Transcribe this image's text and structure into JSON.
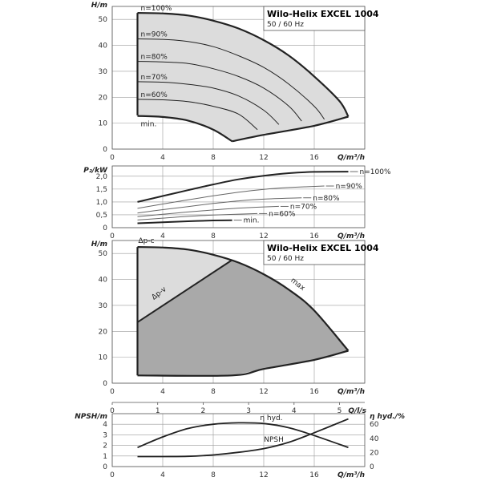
{
  "chart_data": [
    {
      "type": "line",
      "title": "Wilo-Helix EXCEL 1004",
      "subtitle": "50 / 60 Hz",
      "xlabel": "Q/m³/h",
      "ylabel": "H/m",
      "xlim": [
        0,
        20
      ],
      "ylim": [
        0,
        55
      ],
      "x_ticks": [
        "0",
        "4",
        "8",
        "12",
        "16"
      ],
      "y_ticks": [
        "0",
        "10",
        "20",
        "30",
        "40",
        "50"
      ],
      "grid": true,
      "fill_color": "#dcdcdc",
      "series": [
        {
          "name": "n=100%",
          "x": [
            2,
            4,
            6,
            8,
            10,
            12,
            14,
            16,
            18,
            18.7
          ],
          "y": [
            52.5,
            52.3,
            51.5,
            49.5,
            46.5,
            42,
            36,
            28,
            18.5,
            12.5
          ]
        },
        {
          "name": "n=90%",
          "x": [
            2,
            4,
            6,
            8,
            10,
            12,
            14,
            16,
            16.8
          ],
          "y": [
            42.5,
            42.3,
            41.5,
            39.5,
            36,
            31.5,
            25,
            16.5,
            11.5
          ]
        },
        {
          "name": "n=80%",
          "x": [
            2,
            4,
            6,
            8,
            10,
            12,
            14,
            15
          ],
          "y": [
            33.8,
            33.6,
            33,
            31,
            28,
            23.5,
            16.5,
            10.8
          ]
        },
        {
          "name": "n=70%",
          "x": [
            2,
            4,
            6,
            8,
            10,
            12,
            13.2
          ],
          "y": [
            26,
            25.8,
            25,
            23.5,
            20.5,
            15,
            9.5
          ]
        },
        {
          "name": "n=60%",
          "x": [
            2,
            4,
            6,
            8,
            10,
            11.5
          ],
          "y": [
            19.2,
            19,
            18.3,
            16.5,
            13.5,
            7.5
          ]
        },
        {
          "name": "min.",
          "x": [
            2,
            4,
            6,
            8,
            9.5
          ],
          "y": [
            12.8,
            12.4,
            11,
            7.5,
            3
          ]
        }
      ],
      "boundary": {
        "x": [
          2,
          2.2,
          4,
          6,
          8,
          9.5,
          12,
          16,
          18.7
        ],
        "y": [
          13,
          52.5,
          52.3,
          51.5,
          49.5,
          3,
          5.5,
          9,
          12.5
        ]
      }
    },
    {
      "type": "line",
      "xlabel": "Q/m³/h",
      "ylabel": "P₂/kW",
      "xlim": [
        0,
        20
      ],
      "ylim": [
        0,
        2.4
      ],
      "x_ticks": [
        "0",
        "4",
        "8",
        "12",
        "16"
      ],
      "y_ticks": [
        "0",
        "0,5",
        "1,0",
        "1,5",
        "2,0"
      ],
      "grid": true,
      "series": [
        {
          "name": "n=100%",
          "x": [
            2,
            4,
            6,
            8,
            10,
            12,
            14,
            16,
            18.7
          ],
          "y": [
            1.0,
            1.23,
            1.46,
            1.68,
            1.88,
            2.02,
            2.12,
            2.17,
            2.18
          ]
        },
        {
          "name": "n=90%",
          "x": [
            2,
            4,
            6,
            8,
            10,
            12,
            14,
            16.8
          ],
          "y": [
            0.75,
            0.92,
            1.08,
            1.24,
            1.38,
            1.49,
            1.56,
            1.62
          ]
        },
        {
          "name": "n=80%",
          "x": [
            2,
            4,
            6,
            8,
            10,
            12,
            15
          ],
          "y": [
            0.57,
            0.7,
            0.82,
            0.94,
            1.04,
            1.11,
            1.16
          ]
        },
        {
          "name": "n=70%",
          "x": [
            2,
            4,
            6,
            8,
            10,
            13.2
          ],
          "y": [
            0.43,
            0.52,
            0.61,
            0.69,
            0.76,
            0.83
          ]
        },
        {
          "name": "n=60%",
          "x": [
            2,
            4,
            6,
            8,
            11.5
          ],
          "y": [
            0.3,
            0.37,
            0.44,
            0.49,
            0.55
          ]
        },
        {
          "name": "min.",
          "x": [
            2,
            4,
            6,
            8,
            9.5
          ],
          "y": [
            0.17,
            0.21,
            0.25,
            0.28,
            0.29
          ]
        }
      ]
    },
    {
      "type": "area",
      "title": "Wilo-Helix EXCEL 1004",
      "subtitle": "50 / 60 Hz",
      "xlabel": "Q/m³/h",
      "ylabel": "H/m",
      "xlim": [
        0,
        20
      ],
      "ylim": [
        0,
        55
      ],
      "x_ticks": [
        "0",
        "4",
        "8",
        "12",
        "16"
      ],
      "y_ticks": [
        "0",
        "10",
        "20",
        "30",
        "40",
        "50"
      ],
      "grid": true,
      "x2label": "Q/l/s",
      "x2_ticks": [
        "0",
        "1",
        "2",
        "3",
        "4",
        "5"
      ],
      "x2_unit_factor": 3.6,
      "light_color": "#dcdcdc",
      "dark_color": "#a9a9a9",
      "series": [
        {
          "name": "Δp-c",
          "x": [
            2,
            9.5
          ],
          "y": [
            52.5,
            52.5
          ]
        },
        {
          "name": "Δp-v",
          "x": [
            2,
            9.5
          ],
          "y": [
            23.5,
            47.5
          ]
        },
        {
          "name": "max",
          "x": [
            2,
            4,
            6,
            8,
            10,
            12,
            14,
            16,
            18.7
          ],
          "y": [
            52.5,
            52.3,
            51.5,
            49.5,
            46.5,
            42,
            36,
            28,
            12.5
          ]
        },
        {
          "name": "min.",
          "x": [
            2,
            9.5,
            12,
            16,
            18.7
          ],
          "y": [
            3,
            3,
            5.5,
            9,
            12.5
          ]
        }
      ]
    },
    {
      "type": "line",
      "xlabel": "Q/m³/h",
      "ylabel": "NPSH/m",
      "y2label": "η hyd./%",
      "xlim": [
        0,
        20
      ],
      "ylim": [
        0,
        5
      ],
      "y2lim": [
        0,
        75
      ],
      "x_ticks": [
        "0",
        "4",
        "8",
        "12",
        "16"
      ],
      "y_ticks": [
        "0",
        "1",
        "2",
        "3",
        "4"
      ],
      "y2_ticks": [
        "0",
        "20",
        "40",
        "60"
      ],
      "grid": true,
      "series": [
        {
          "name": "η hyd.",
          "axis": "right",
          "x": [
            2,
            4,
            6,
            8,
            10,
            12,
            14,
            16,
            18.7
          ],
          "y": [
            27,
            42,
            54,
            60,
            62,
            61,
            55,
            44,
            27
          ]
        },
        {
          "name": "NPSH",
          "axis": "left",
          "x": [
            2,
            4,
            6,
            8,
            10,
            12,
            14,
            16,
            18.7
          ],
          "y": [
            0.95,
            0.95,
            0.97,
            1.1,
            1.35,
            1.7,
            2.3,
            3.2,
            4.5
          ]
        }
      ]
    }
  ]
}
